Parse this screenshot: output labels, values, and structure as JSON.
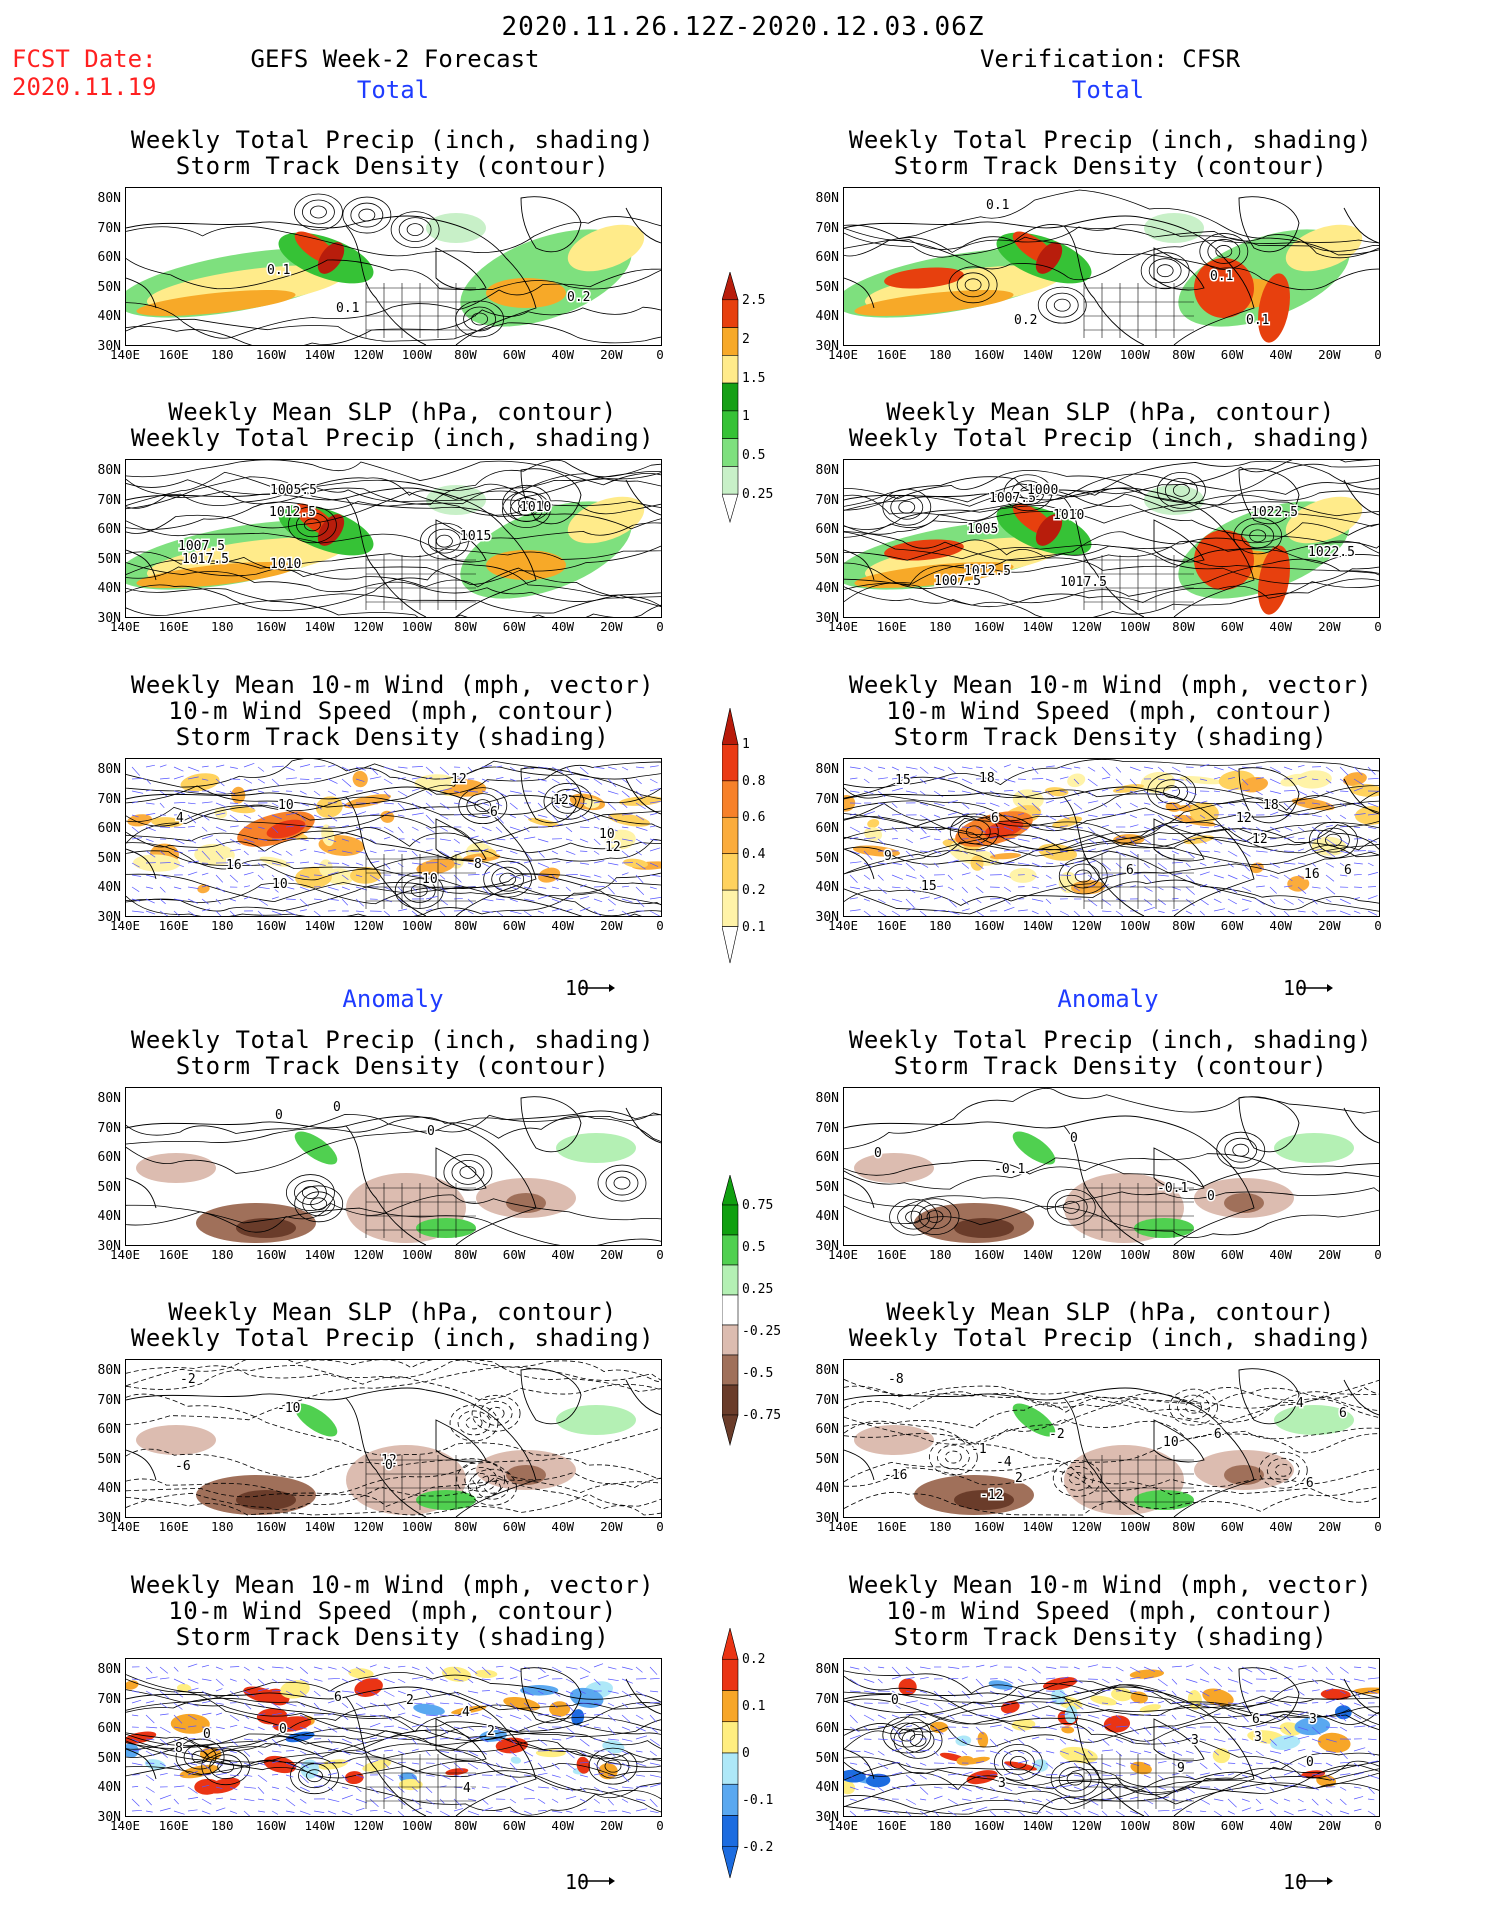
{
  "header": {
    "date_range": "2020.11.26.12Z-2020.12.03.06Z",
    "fcst_label": "FCST Date:",
    "fcst_date": "2020.11.19",
    "left_title": "GEFS Week-2 Forecast",
    "right_title": "Verification: CFSR",
    "total_label": "Total",
    "anomaly_label": "Anomaly"
  },
  "panel_titles": {
    "precip": [
      "Weekly Total Precip (inch, shading)",
      "Storm Track Density (contour)"
    ],
    "slp": [
      "Weekly Mean SLP (hPa, contour)",
      "Weekly Total Precip (inch, shading)"
    ],
    "wind": [
      "Weekly Mean 10-m Wind (mph, vector)",
      "10-m Wind Speed (mph, contour)",
      "Storm Track Density (shading)"
    ]
  },
  "axes": {
    "lat_ticks": [
      "80N",
      "70N",
      "60N",
      "50N",
      "40N",
      "30N"
    ],
    "lon_ticks": [
      "140E",
      "160E",
      "180",
      "160W",
      "140W",
      "120W",
      "100W",
      "80W",
      "60W",
      "40W",
      "20W",
      "0"
    ]
  },
  "vector_ref": "10",
  "colorbars": {
    "total_precip": [
      "2.5",
      "2",
      "1.5",
      "1",
      "0.5",
      "0.25"
    ],
    "total_std": [
      "1",
      "0.8",
      "0.6",
      "0.4",
      "0.2",
      "0.1"
    ],
    "anom_precip": [
      "0.75",
      "0.5",
      "0.25",
      "-0.25",
      "-0.5",
      "-0.75"
    ],
    "anom_std": [
      "0.2",
      "0.1",
      "0",
      "-0.1",
      "-0.2"
    ]
  },
  "colors": {
    "precip_total": [
      "#c8f0c8",
      "#7ee07e",
      "#36c236",
      "#16a016",
      "#ffeb8a",
      "#f7a928",
      "#e7400e",
      "#b81d0c"
    ],
    "precip_anom": [
      "#6a3c2a",
      "#a0705a",
      "#dcbcb0",
      "#ffffff",
      "#b4f0b4",
      "#50d050",
      "#10a010"
    ],
    "std_total": [
      "#fff3a8",
      "#ffd25e",
      "#fbac3c",
      "#f7812a",
      "#ea3a14",
      "#b81a0a"
    ],
    "std_anom": [
      "#1c6ce0",
      "#5aa8f0",
      "#aee8f8",
      "#ffffff",
      "#ffee80",
      "#f7a628",
      "#ea3414"
    ]
  },
  "panel_labels": {
    "l_precip_total": [
      "0.1",
      "0.2",
      "0.1"
    ],
    "r_precip_total": [
      "0.1",
      "0.2",
      "0.1",
      "0.1"
    ],
    "l_slp_total": [
      "1010",
      "1010",
      "1007.5",
      "1012.5",
      "1015",
      "1017.5",
      "1005.5"
    ],
    "r_slp_total": [
      "1007.5",
      "1005",
      "1010",
      "1017.5",
      "1012.5",
      "1000",
      "1007.5",
      "1022.5",
      "1022.5"
    ],
    "l_wind_total": [
      "10",
      "8",
      "6",
      "12",
      "10",
      "12",
      "10",
      "12",
      "16",
      "4",
      "10"
    ],
    "r_wind_total": [
      "6",
      "15",
      "15",
      "6",
      "12",
      "18",
      "18",
      "12",
      "16",
      "6",
      "9"
    ],
    "l_precip_anom": [
      "0",
      "0",
      "0"
    ],
    "r_precip_anom": [
      "-0.1",
      "0",
      "0",
      "-0.1",
      "0"
    ],
    "l_slp_anom": [
      "-10",
      "12",
      "-6",
      "-2",
      "0"
    ],
    "r_slp_anom": [
      "-4",
      "-6",
      "-2",
      "-1",
      "-8",
      "-16",
      "-12",
      "-6",
      "4",
      "2",
      "6",
      "10"
    ],
    "l_wind_anom": [
      "0",
      "6",
      "2",
      "4",
      "0",
      "4",
      "8",
      "2"
    ],
    "r_wind_anom": [
      "3",
      "6",
      "0",
      "3",
      "9",
      "0",
      "3",
      "3"
    ]
  }
}
